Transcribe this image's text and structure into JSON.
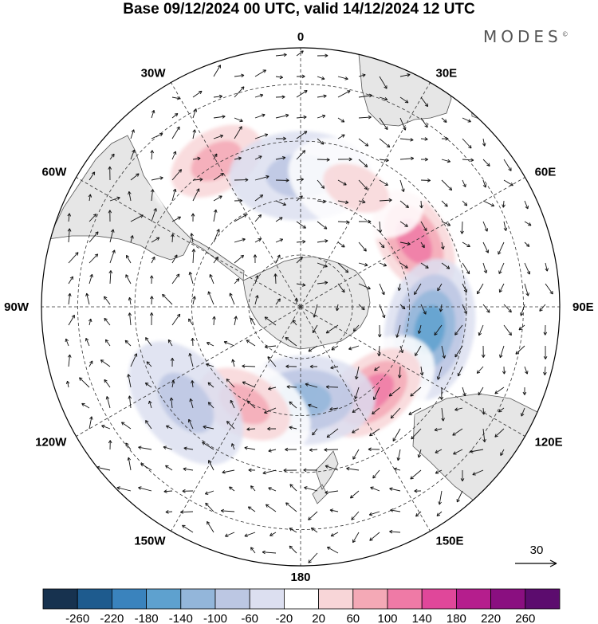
{
  "header": {
    "title": "Base 09/12/2024 00 UTC, valid 14/12/2024 12 UTC",
    "brand": "MODES",
    "brand_mark": "©"
  },
  "map": {
    "projection": "south-polar-stereographic",
    "longitude_labels": [
      {
        "text": "0",
        "lon": 0
      },
      {
        "text": "30E",
        "lon": 30
      },
      {
        "text": "60E",
        "lon": 60
      },
      {
        "text": "90E",
        "lon": 90
      },
      {
        "text": "120E",
        "lon": 120
      },
      {
        "text": "150E",
        "lon": 150
      },
      {
        "text": "180",
        "lon": 180
      },
      {
        "text": "150W",
        "lon": -150
      },
      {
        "text": "120W",
        "lon": -120
      },
      {
        "text": "90W",
        "lon": -90
      },
      {
        "text": "60W",
        "lon": -60
      },
      {
        "text": "30W",
        "lon": -30
      }
    ],
    "vector_reference": {
      "value": "30"
    },
    "anomaly_centers": [
      {
        "sign": "positive",
        "lon": 60,
        "lat": -55,
        "strength": 140
      },
      {
        "sign": "negative",
        "lon": 100,
        "lat": -55,
        "strength": -140
      },
      {
        "sign": "positive",
        "lon": 140,
        "lat": -60,
        "strength": 140
      },
      {
        "sign": "negative",
        "lon": 178,
        "lat": -65,
        "strength": -100
      },
      {
        "sign": "positive",
        "lon": -150,
        "lat": -60,
        "strength": 100
      },
      {
        "sign": "negative",
        "lon": -130,
        "lat": -50,
        "strength": -60
      },
      {
        "sign": "positive",
        "lon": -30,
        "lat": -45,
        "strength": 100
      },
      {
        "sign": "negative",
        "lon": 0,
        "lat": -55,
        "strength": -60
      },
      {
        "sign": "positive",
        "lon": 25,
        "lat": -55,
        "strength": 60
      }
    ]
  },
  "colorbar": {
    "levels": [
      "-260",
      "-220",
      "-180",
      "-140",
      "-100",
      "-60",
      "-20",
      "20",
      "60",
      "100",
      "140",
      "180",
      "220",
      "260"
    ],
    "colors": [
      "#17324f",
      "#1e5b8e",
      "#3a83bd",
      "#5ea1cf",
      "#93b6da",
      "#bcc7e3",
      "#dcdff0",
      "#ffffff",
      "#f8d6d8",
      "#f4a9b6",
      "#ef7aa6",
      "#e0479a",
      "#b51e8d",
      "#8a0f80",
      "#5c0c6e"
    ]
  },
  "colors": {
    "land": "#ececec",
    "coast": "#555555",
    "grid": "#333333"
  }
}
